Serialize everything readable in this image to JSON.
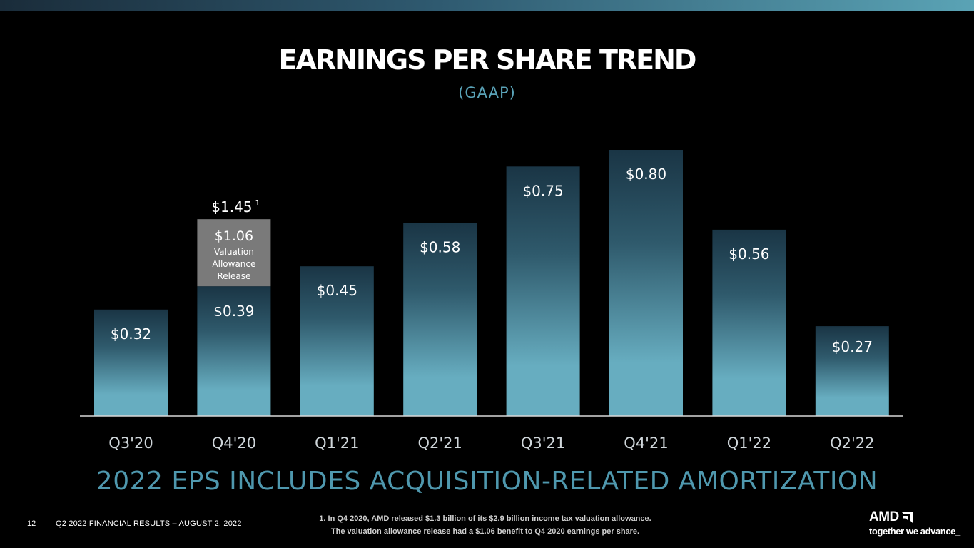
{
  "title": "EARNINGS PER SHARE TREND",
  "subtitle": "(GAAP)",
  "chart_data": {
    "type": "bar",
    "categories": [
      "Q3'20",
      "Q4'20",
      "Q1'21",
      "Q2'21",
      "Q3'21",
      "Q4'21",
      "Q1'22",
      "Q2'22"
    ],
    "values": [
      0.32,
      0.39,
      0.45,
      0.58,
      0.75,
      0.8,
      0.56,
      0.27
    ],
    "value_labels": [
      "$0.32",
      "$0.39",
      "$0.45",
      "$0.58",
      "$0.75",
      "$0.80",
      "$0.56",
      "$0.27"
    ],
    "ylim": [
      0,
      0.8
    ],
    "stacked_segment": {
      "category": "Q4'20",
      "value": 1.06,
      "value_label": "$1.06",
      "description_lines": [
        "Valuation",
        "Allowance",
        "Release"
      ],
      "total_label": "$1.45",
      "total_footnote_marker": "1",
      "color": "#7a7a7a"
    },
    "bar_gradient": [
      "#1a3545",
      "#67adc0"
    ],
    "grid": false,
    "legend": "none"
  },
  "headline": "2022 EPS INCLUDES ACQUISITION-RELATED AMORTIZATION",
  "footer": {
    "page_number": "12",
    "text": "Q2 2022 FINANCIAL RESULTS – AUGUST 2, 2022"
  },
  "footnote": {
    "line1": "1. In Q4 2020, AMD released $1.3 billion of its $2.9 billion income tax valuation allowance.",
    "line2": "The valuation allowance release had a $1.06 benefit to Q4 2020 earnings per share."
  },
  "logo": {
    "wordmark": "AMD",
    "tagline": "together we advance_"
  },
  "colors": {
    "background": "#000000",
    "accent": "#5aa3b8",
    "headline": "#4f98ae"
  }
}
